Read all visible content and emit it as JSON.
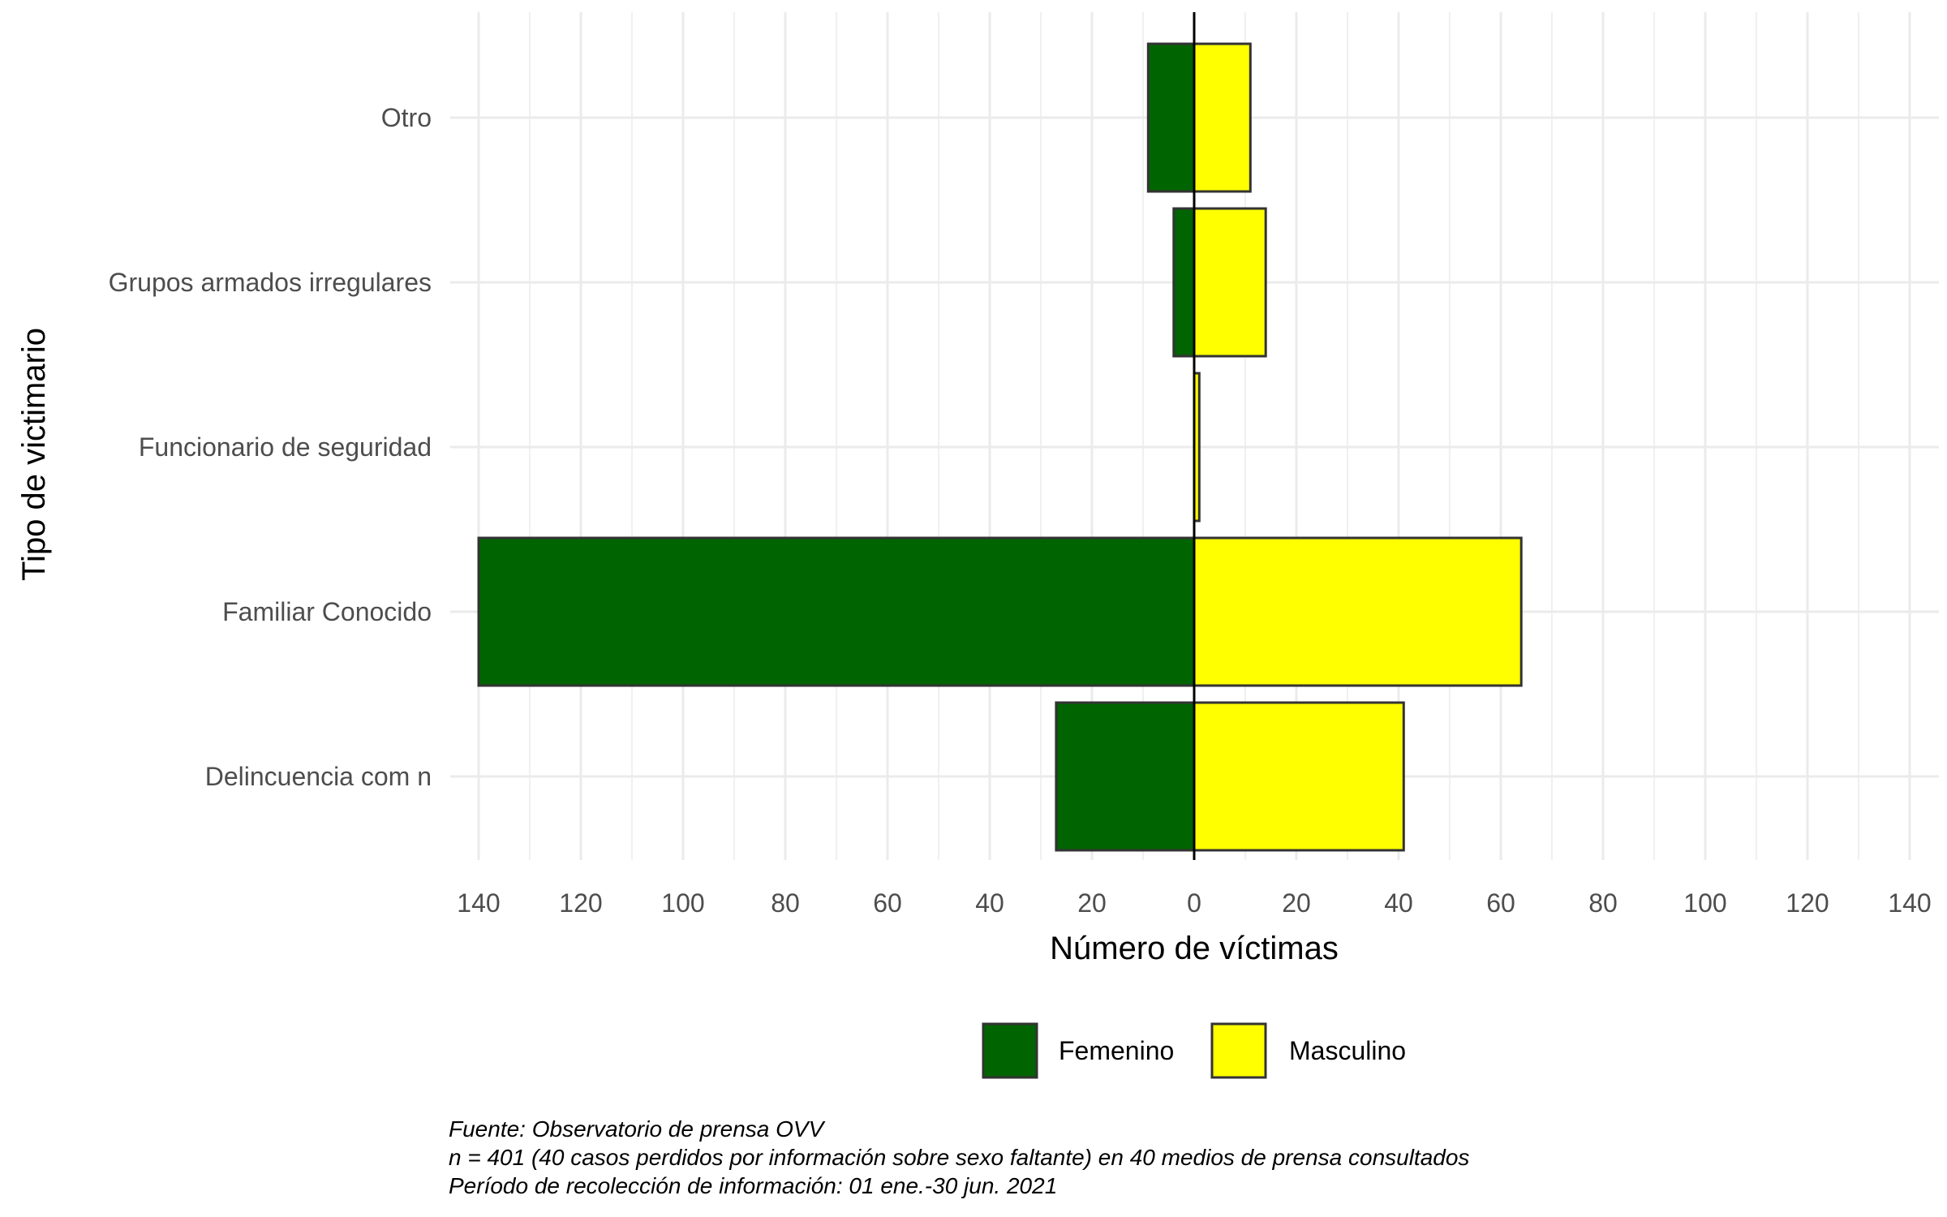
{
  "chart_data": {
    "type": "bar",
    "orientation": "horizontal-diverging",
    "categories": [
      "Otro",
      "Grupos armados irregulares",
      "Funcionario de seguridad",
      "Familiar Conocido",
      "Delincuencia com n"
    ],
    "series": [
      {
        "name": "Femenino",
        "values": [
          9,
          4,
          0,
          140,
          27
        ],
        "color": "#006400"
      },
      {
        "name": "Masculino",
        "values": [
          11,
          14,
          1,
          64,
          41
        ],
        "color": "#ffff00"
      }
    ],
    "xlabel": "Número de víctimas",
    "ylabel": "Tipo de victimario",
    "xlim": [
      -145,
      145
    ],
    "x_ticks": [
      -140,
      -120,
      -100,
      -80,
      -60,
      -40,
      -20,
      0,
      20,
      40,
      60,
      80,
      100,
      120,
      140
    ],
    "x_tick_labels": [
      "140",
      "120",
      "100",
      "80",
      "60",
      "40",
      "20",
      "0",
      "20",
      "40",
      "60",
      "80",
      "100",
      "120",
      "140"
    ],
    "grid": true,
    "legend_position": "bottom",
    "caption": [
      "Fuente: Observatorio de prensa OVV",
      "n = 401 (40 casos perdidos por información sobre sexo faltante) en 40 medios de prensa consultados",
      "Período de recolección de información: 01 ene.-30 jun. 2021"
    ]
  }
}
